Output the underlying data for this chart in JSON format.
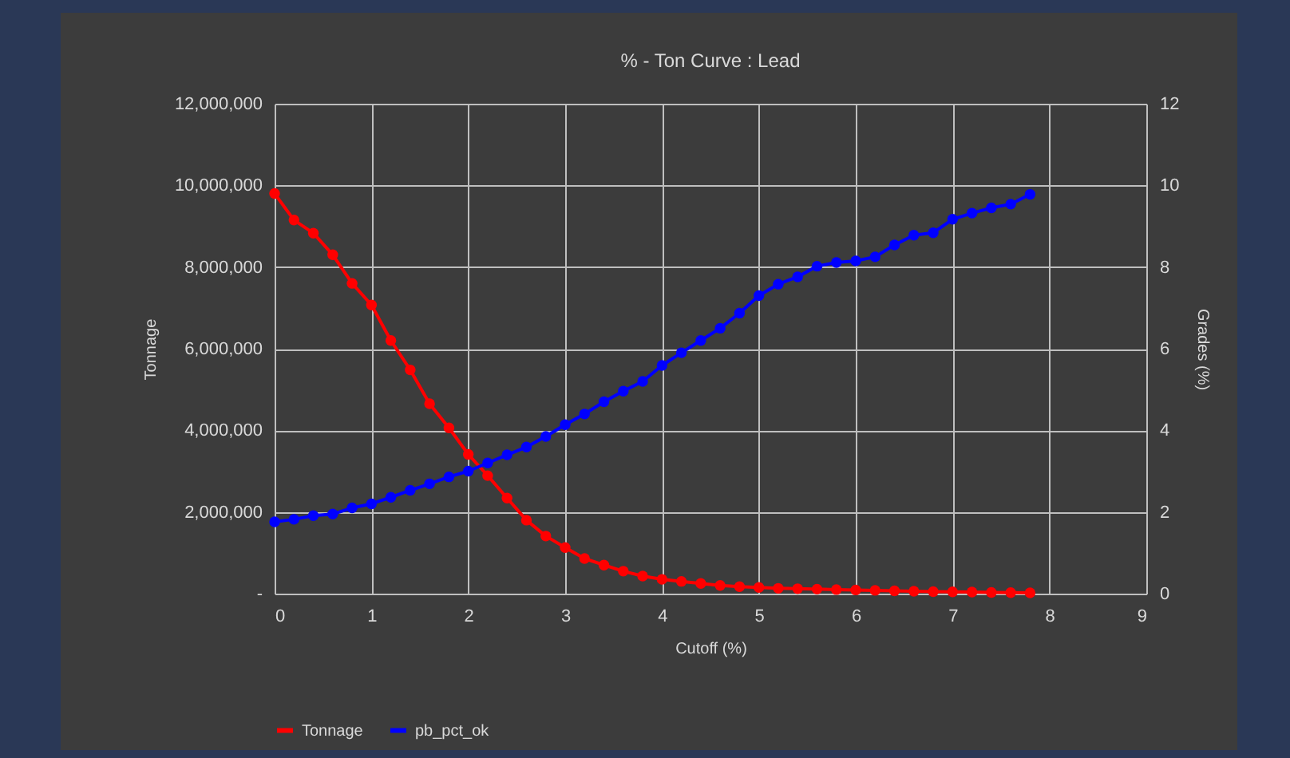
{
  "chart_data": {
    "type": "line",
    "title": "% - Ton Curve : Lead",
    "xlabel": "Cutoff (%)",
    "ylabel": "Tonnage",
    "y2label": "Grades (%)",
    "x": [
      0,
      0.2,
      0.4,
      0.6,
      0.8,
      1.0,
      1.2,
      1.4,
      1.6,
      1.8,
      2.0,
      2.2,
      2.4,
      2.6,
      2.8,
      3.0,
      3.2,
      3.4,
      3.6,
      3.8,
      4.0,
      4.2,
      4.4,
      4.6,
      4.8,
      5.0,
      5.2,
      5.4,
      5.6,
      5.8,
      6.0,
      6.2,
      6.4,
      6.6,
      6.8,
      7.0,
      7.2,
      7.4,
      7.6,
      7.8
    ],
    "series": [
      {
        "name": "Tonnage",
        "color": "#ff0000",
        "values": [
          9800000,
          9150000,
          8830000,
          8300000,
          7600000,
          7070000,
          6200000,
          5480000,
          4650000,
          4060000,
          3410000,
          2890000,
          2340000,
          1800000,
          1410000,
          1130000,
          860000,
          700000,
          550000,
          430000,
          350000,
          300000,
          250000,
          200000,
          170000,
          150000,
          130000,
          120000,
          110000,
          100000,
          90000,
          80000,
          70000,
          60000,
          50000,
          45000,
          40000,
          30000,
          25000,
          20000
        ]
      },
      {
        "name": "pb_pct_ok",
        "color": "#0000ff",
        "axis": "y2",
        "values": [
          1.76,
          1.82,
          1.91,
          1.95,
          2.1,
          2.2,
          2.36,
          2.53,
          2.69,
          2.86,
          3.0,
          3.2,
          3.4,
          3.59,
          3.85,
          4.14,
          4.4,
          4.7,
          4.96,
          5.2,
          5.59,
          5.9,
          6.2,
          6.5,
          6.87,
          7.3,
          7.58,
          7.76,
          8.02,
          8.11,
          8.15,
          8.25,
          8.54,
          8.78,
          8.84,
          9.17,
          9.32,
          9.45,
          9.54,
          9.78
        ]
      }
    ],
    "xlim": [
      0,
      9
    ],
    "xticks": [
      0,
      1,
      2,
      3,
      4,
      5,
      6,
      7,
      8,
      9
    ],
    "ylim": [
      0,
      12000000
    ],
    "yticks": [
      {
        "value": 0,
        "label": "-"
      },
      {
        "value": 2000000,
        "label": "2,000,000"
      },
      {
        "value": 4000000,
        "label": "4,000,000"
      },
      {
        "value": 6000000,
        "label": "6,000,000"
      },
      {
        "value": 8000000,
        "label": "8,000,000"
      },
      {
        "value": 10000000,
        "label": "10,000,000"
      },
      {
        "value": 12000000,
        "label": "12,000,000"
      }
    ],
    "y2lim": [
      0,
      12
    ],
    "y2ticks": [
      0,
      2,
      4,
      6,
      8,
      10,
      12
    ],
    "grid": true,
    "legend": "bottom",
    "marker": "circle",
    "line_style": "solid"
  }
}
